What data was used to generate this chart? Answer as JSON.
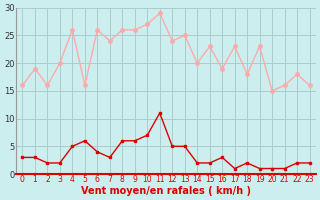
{
  "hours": [
    0,
    1,
    2,
    3,
    4,
    5,
    6,
    7,
    8,
    9,
    10,
    11,
    12,
    13,
    14,
    15,
    16,
    17,
    18,
    19,
    20,
    21,
    22,
    23
  ],
  "avg_wind": [
    3,
    3,
    2,
    2,
    5,
    6,
    4,
    3,
    6,
    6,
    7,
    11,
    5,
    5,
    2,
    2,
    3,
    1,
    2,
    1,
    1,
    1,
    2,
    2
  ],
  "gust_wind": [
    16,
    19,
    16,
    20,
    26,
    16,
    26,
    24,
    26,
    26,
    27,
    29,
    24,
    25,
    20,
    23,
    19,
    23,
    18,
    23,
    15,
    16,
    18,
    16
  ],
  "avg_color": "#dd0000",
  "gust_color": "#ffaaaa",
  "bg_color": "#cceeee",
  "grid_color": "#aacccc",
  "xlabel": "Vent moyen/en rafales ( km/h )",
  "xlabel_color": "#dd0000",
  "ylim": [
    0,
    30
  ],
  "yticks": [
    0,
    5,
    10,
    15,
    20,
    25,
    30
  ]
}
